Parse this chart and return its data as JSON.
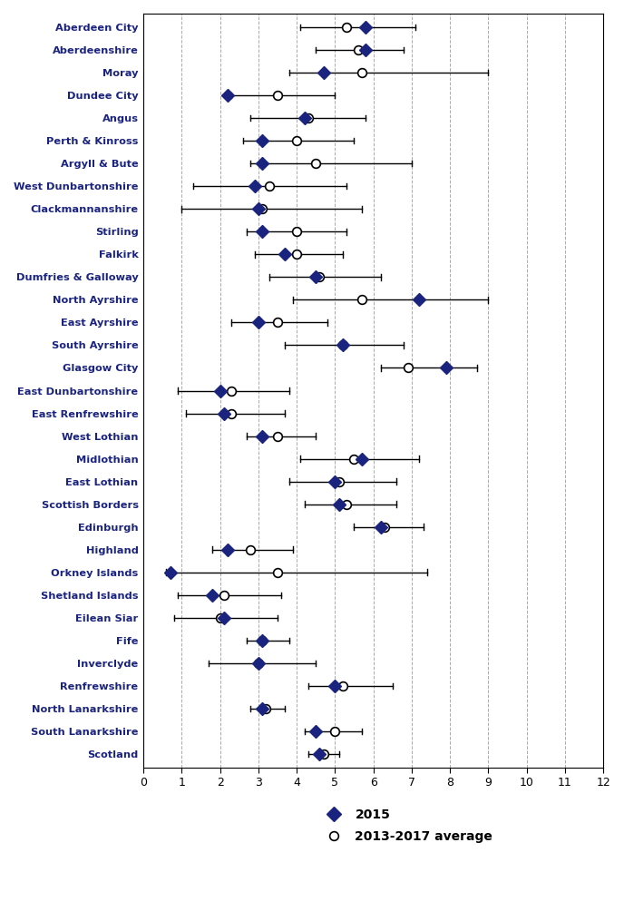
{
  "labels": [
    "Aberdeen City",
    "Aberdeenshire",
    "Moray",
    "Dundee City",
    "Angus",
    "Perth & Kinross",
    "Argyll & Bute",
    "West Dunbartonshire",
    "Clackmannanshire",
    "Stirling",
    "Falkirk",
    "Dumfries & Galloway",
    "North Ayrshire",
    "East Ayrshire",
    "South Ayrshire",
    "Glasgow City",
    "East Dunbartonshire",
    "East Renfrewshire",
    "West Lothian",
    "Midlothian",
    "East Lothian",
    "Scottish Borders",
    "Edinburgh",
    "Highland",
    "Orkney Islands",
    "Shetland Islands",
    "Eilean Siar",
    "Fife",
    "Inverclyde",
    "Renfrewshire",
    "North Lanarkshire",
    "South Lanarkshire",
    "Scotland"
  ],
  "val2015": [
    5.8,
    5.8,
    4.7,
    2.2,
    4.2,
    3.1,
    3.1,
    2.9,
    3.0,
    3.1,
    3.7,
    4.5,
    7.2,
    3.0,
    5.2,
    7.9,
    2.0,
    2.1,
    3.1,
    5.7,
    5.0,
    5.1,
    6.2,
    2.2,
    0.7,
    1.8,
    2.1,
    3.1,
    3.0,
    5.0,
    3.1,
    4.5,
    4.6
  ],
  "avg": [
    5.3,
    5.6,
    5.7,
    3.5,
    4.3,
    4.0,
    4.5,
    3.3,
    3.1,
    4.0,
    4.0,
    4.6,
    5.7,
    3.5,
    5.2,
    6.9,
    2.3,
    2.3,
    3.5,
    5.5,
    5.1,
    5.3,
    6.3,
    2.8,
    3.5,
    2.1,
    2.0,
    3.1,
    3.0,
    5.2,
    3.2,
    5.0,
    4.7
  ],
  "ci_low": [
    4.1,
    4.5,
    3.8,
    2.3,
    2.8,
    2.6,
    2.8,
    1.3,
    1.0,
    2.7,
    2.9,
    3.3,
    3.9,
    2.3,
    3.7,
    6.2,
    0.9,
    1.1,
    2.7,
    4.1,
    3.8,
    4.2,
    5.5,
    1.8,
    0.6,
    0.9,
    0.8,
    2.7,
    1.7,
    4.3,
    2.8,
    4.2,
    4.3
  ],
  "ci_high": [
    7.1,
    6.8,
    9.0,
    5.0,
    5.8,
    5.5,
    7.0,
    5.3,
    5.7,
    5.3,
    5.2,
    6.2,
    9.0,
    4.8,
    6.8,
    8.7,
    3.8,
    3.7,
    4.5,
    7.2,
    6.6,
    6.6,
    7.3,
    3.9,
    7.4,
    3.6,
    3.5,
    3.8,
    4.5,
    6.5,
    3.7,
    5.7,
    5.1
  ],
  "diamond_color": "#1a237e",
  "circle_facecolor": "#ffffff",
  "circle_edgecolor": "#000000",
  "line_color": "#000000",
  "bg_color": "#ffffff",
  "xlim": [
    0,
    12
  ],
  "xticks": [
    0,
    1,
    2,
    3,
    4,
    5,
    6,
    7,
    8,
    9,
    10,
    11,
    12
  ],
  "grid_color": "#aaaaaa",
  "label_fontsize": 8.2,
  "tick_fontsize": 9,
  "legend_fontsize": 10,
  "label_color": "#1a237e"
}
